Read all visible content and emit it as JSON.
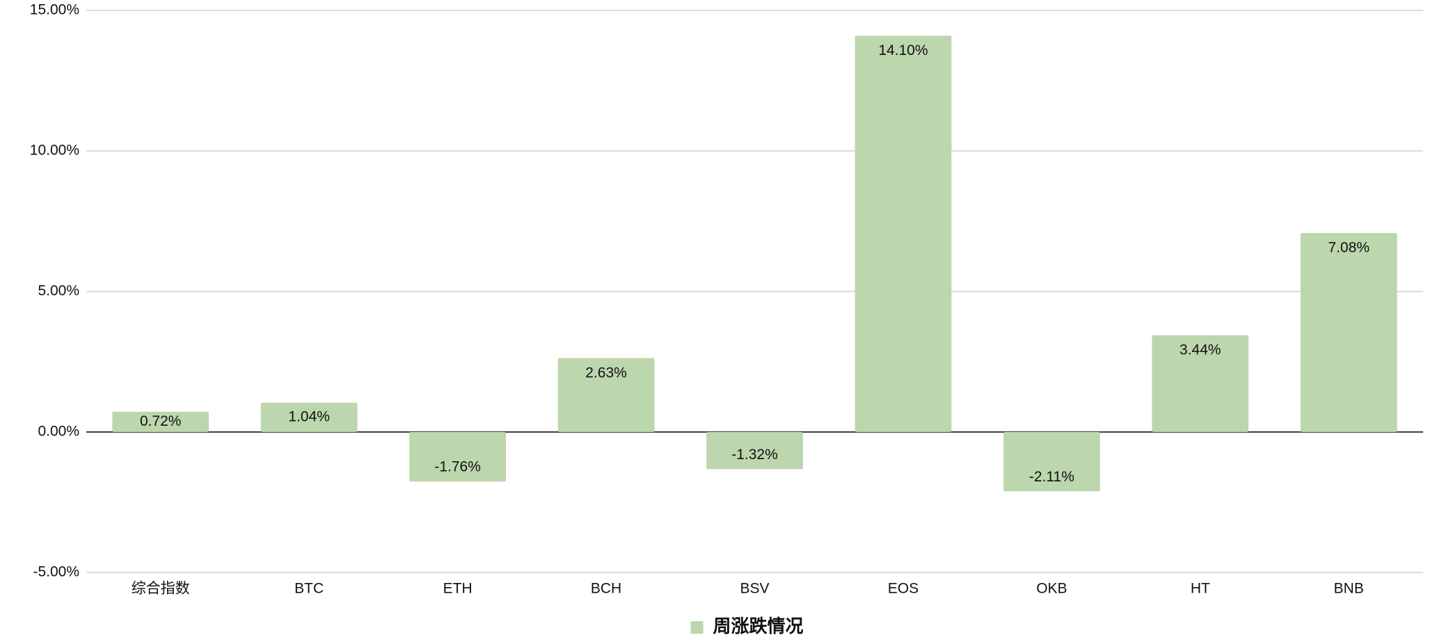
{
  "chart_data": {
    "type": "bar",
    "categories": [
      "综合指数",
      "BTC",
      "ETH",
      "BCH",
      "BSV",
      "EOS",
      "OKB",
      "HT",
      "BNB"
    ],
    "series": [
      {
        "name": "周涨跌情况",
        "color": "#bcd6ad",
        "values": [
          0.72,
          1.04,
          -1.76,
          2.63,
          -1.32,
          14.1,
          -2.11,
          3.44,
          7.08
        ],
        "value_labels": [
          "0.72%",
          "1.04%",
          "-1.76%",
          "2.63%",
          "-1.32%",
          "14.10%",
          "-2.11%",
          "3.44%",
          "7.08%"
        ]
      }
    ],
    "ylim": [
      -5,
      15
    ],
    "yticks": [
      {
        "value": -5,
        "label": "-5.00%"
      },
      {
        "value": 0,
        "label": "0.00%"
      },
      {
        "value": 5,
        "label": "5.00%"
      },
      {
        "value": 10,
        "label": "10.00%"
      },
      {
        "value": 15,
        "label": "15.00%"
      }
    ],
    "grid": true
  }
}
